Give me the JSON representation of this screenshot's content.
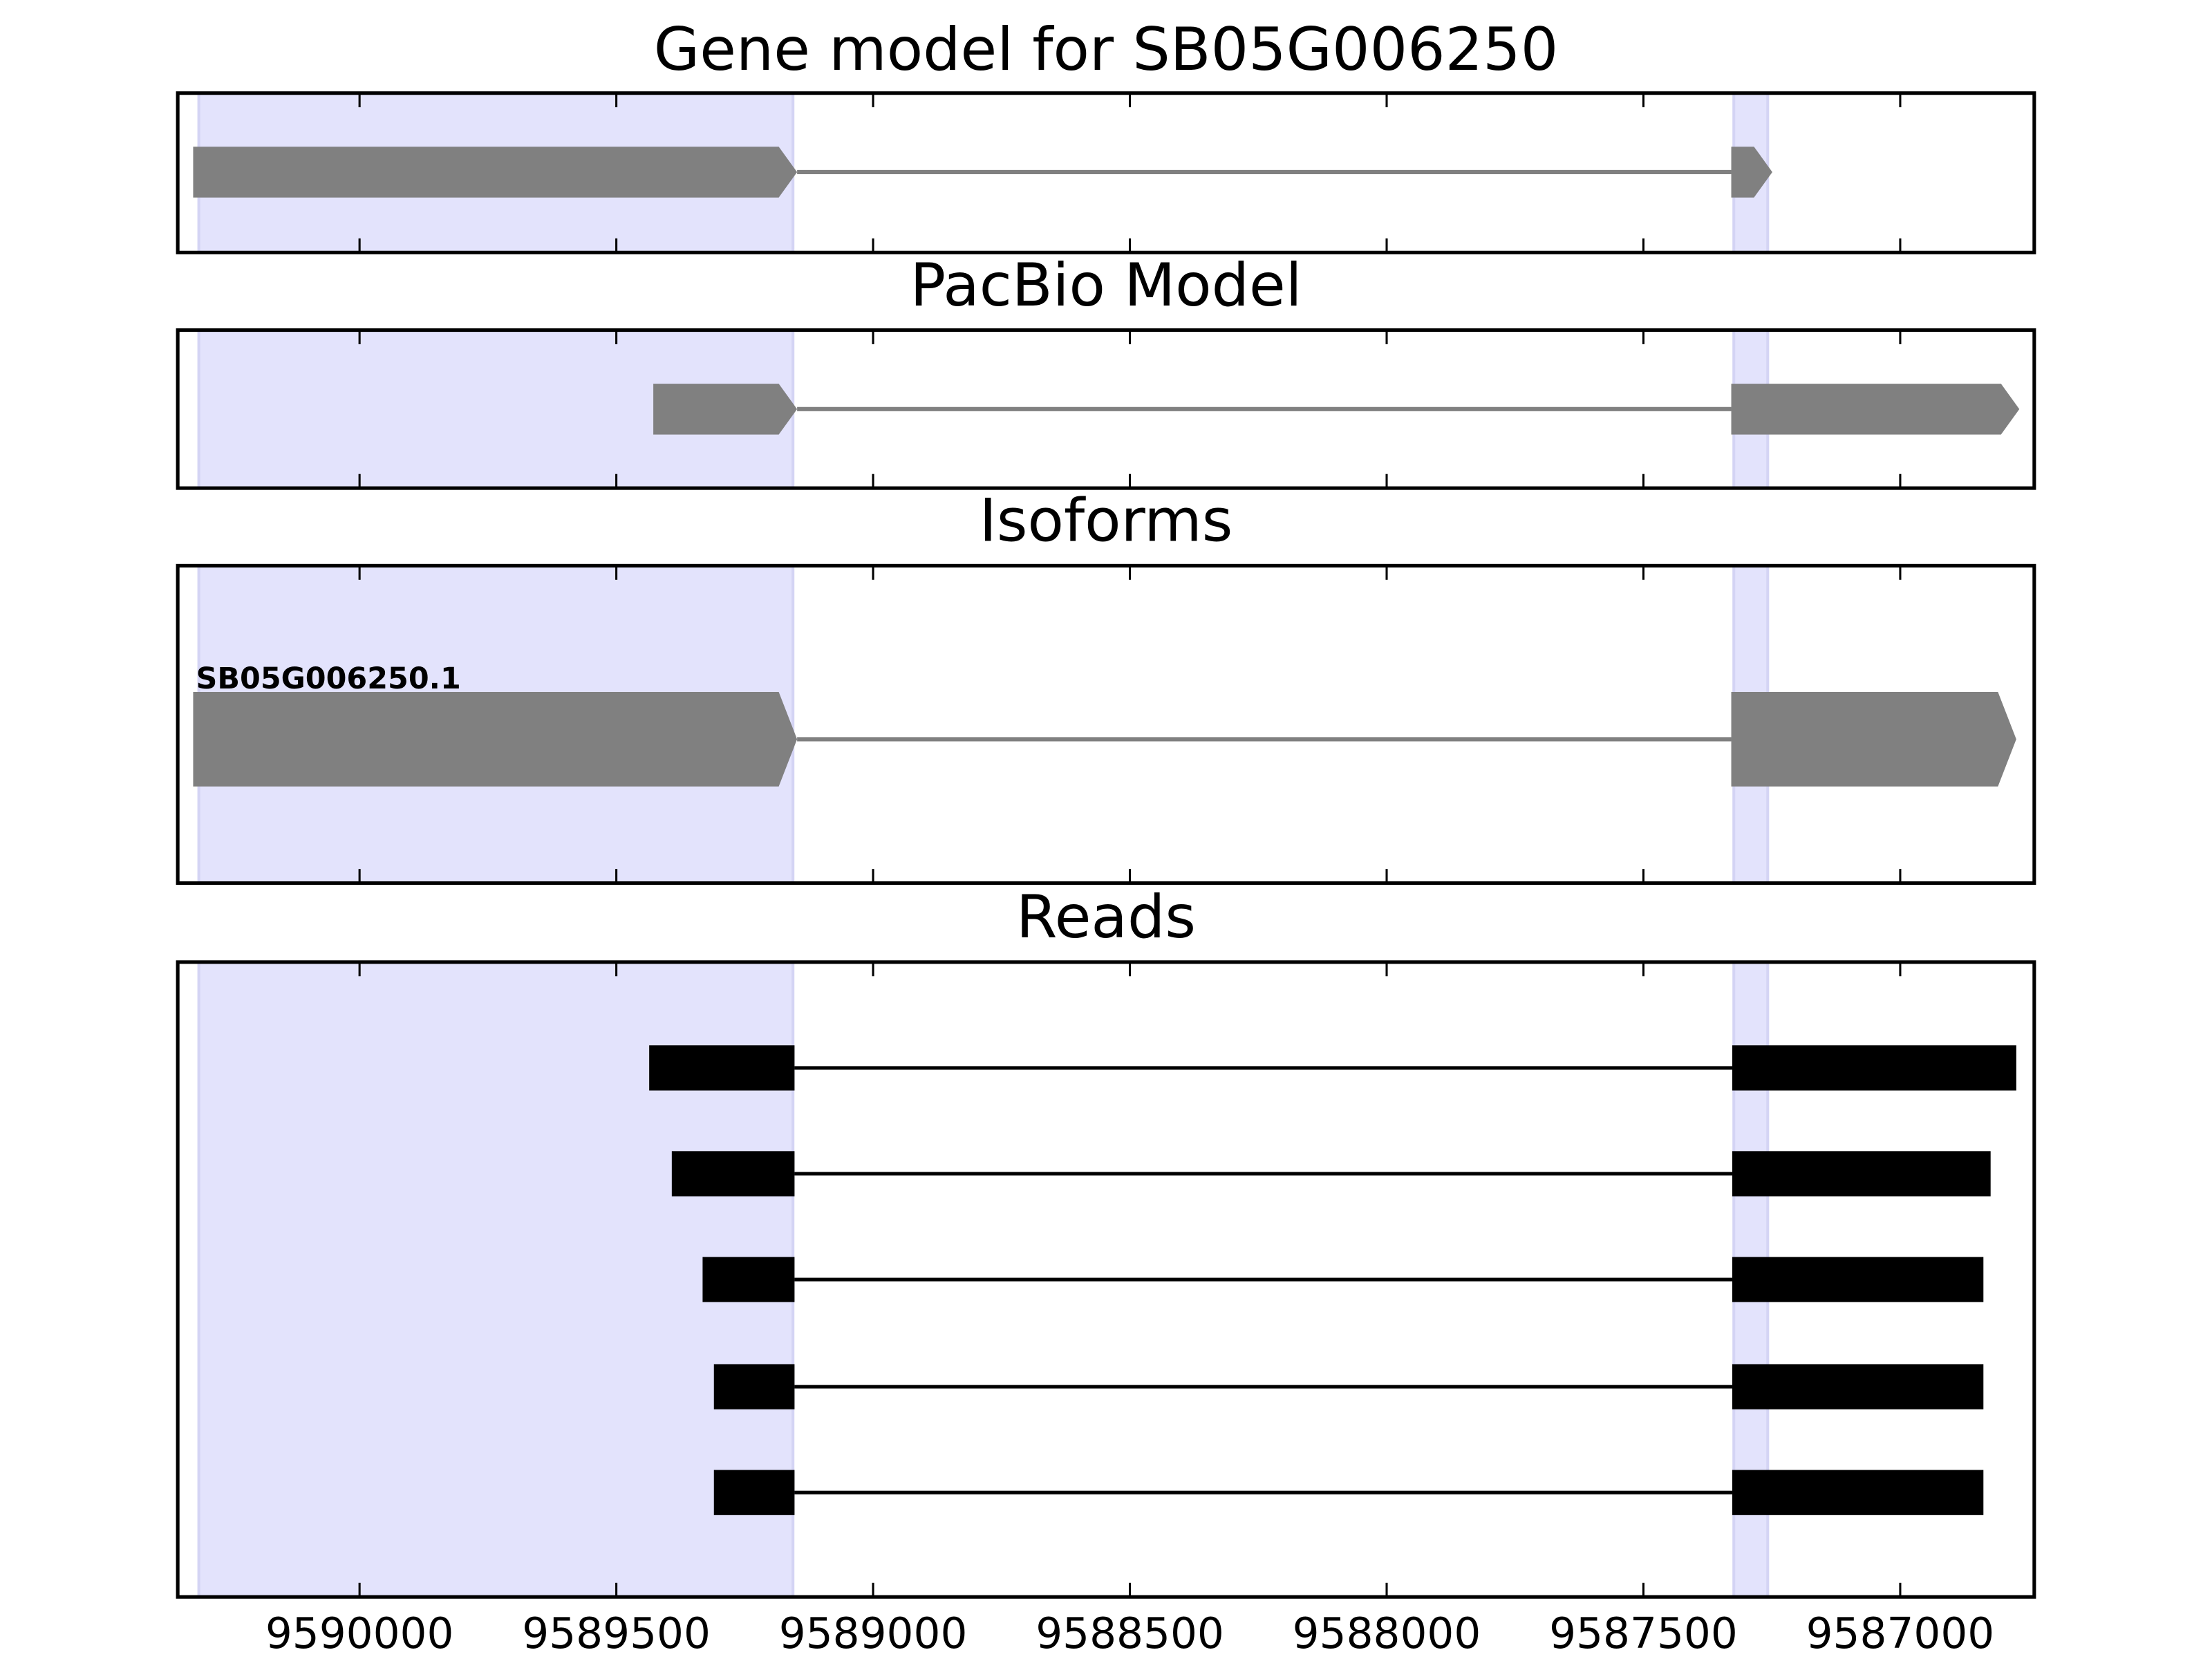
{
  "chart_data": [
    {
      "type": "gene",
      "title": "Gene model for SB05G006250",
      "xlim": [
        9590354,
        9586739
      ],
      "xticks": [
        9590000,
        9589500,
        9589000,
        9588500,
        9588000,
        9587500,
        9587000
      ],
      "highlights": [
        [
          9590313,
          9589156
        ],
        [
          9587324,
          9587258
        ]
      ],
      "highlight_color": "#e3e3fc",
      "color": "#808080",
      "transcripts": [
        {
          "exons": [
            [
              9590324,
              9589148
            ],
            [
              9587329,
              9587249
            ]
          ]
        }
      ]
    },
    {
      "type": "gene",
      "title": "PacBio Model",
      "xlim": [
        9590354,
        9586739
      ],
      "xticks": [
        9590000,
        9589500,
        9589000,
        9588500,
        9588000,
        9587500,
        9587000
      ],
      "highlights": [
        [
          9590313,
          9589156
        ],
        [
          9587324,
          9587258
        ]
      ],
      "highlight_color": "#e3e3fc",
      "color": "#808080",
      "transcripts": [
        {
          "exons": [
            [
              9589428,
              9589148
            ],
            [
              9587329,
              9586768
            ]
          ]
        }
      ]
    },
    {
      "type": "gene",
      "title": "Isoforms",
      "xlim": [
        9590354,
        9586739
      ],
      "xticks": [
        9590000,
        9589500,
        9589000,
        9588500,
        9588000,
        9587500,
        9587000
      ],
      "highlights": [
        [
          9590313,
          9589156
        ],
        [
          9587324,
          9587258
        ]
      ],
      "highlight_color": "#e3e3fc",
      "color": "#808080",
      "transcripts": [
        {
          "name": "SB05G006250.1",
          "exons": [
            [
              9590324,
              9589148
            ],
            [
              9587329,
              9586774
            ]
          ]
        }
      ]
    },
    {
      "type": "reads",
      "title": "Reads",
      "xlim": [
        9590354,
        9586739
      ],
      "xticks": [
        9590000,
        9589500,
        9589000,
        9588500,
        9588000,
        9587500,
        9587000
      ],
      "highlights": [
        [
          9590313,
          9589156
        ],
        [
          9587324,
          9587258
        ]
      ],
      "highlight_color": "#e3e3fc",
      "color": "#000000",
      "transcripts": [
        {
          "exons": [
            [
              9589436,
              9589153
            ],
            [
              9587327,
              9586774
            ]
          ]
        },
        {
          "exons": [
            [
              9589392,
              9589153
            ],
            [
              9587327,
              9586824
            ]
          ]
        },
        {
          "exons": [
            [
              9589332,
              9589153
            ],
            [
              9587327,
              9586838
            ]
          ]
        },
        {
          "exons": [
            [
              9589310,
              9589153
            ],
            [
              9587327,
              9586838
            ]
          ]
        },
        {
          "exons": [
            [
              9589310,
              9589153
            ],
            [
              9587327,
              9586838
            ]
          ]
        }
      ]
    }
  ]
}
